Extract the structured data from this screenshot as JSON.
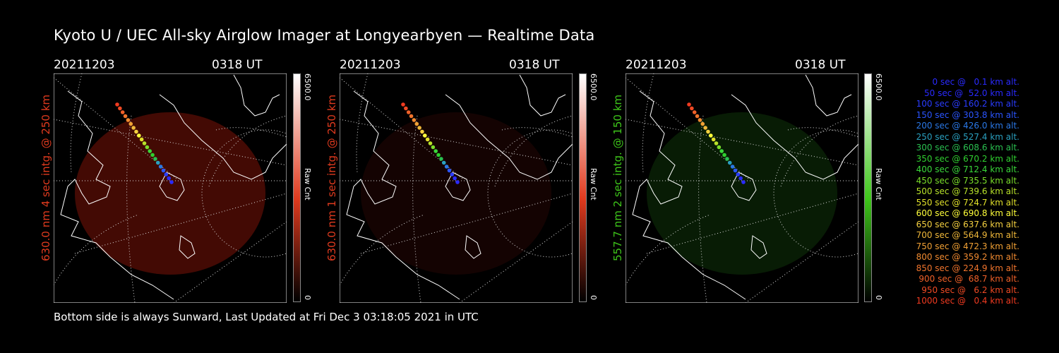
{
  "title": "Kyoto U / UEC All-sky Airglow Imager at Longyearbyen — Realtime Data",
  "footer": "Bottom side is always Sunward, Last Updated at Fri Dec  3 03:18:05 2021 in UTC",
  "panels": [
    {
      "date": "20211203",
      "time": "0318 UT",
      "label": "630.0 nm 4 sec intg. @ 250 km",
      "label_color": "#e03a1e",
      "tint": "#7a1208",
      "intensity": 0.55,
      "cbar_top": "6500.0",
      "cbar_unit": "Raw Cnt",
      "cbar_bottom": "0"
    },
    {
      "date": "20211203",
      "time": "0318 UT",
      "label": "630.0 nm 1 sec intg. @ 250 km",
      "label_color": "#e03a1e",
      "tint": "#3a0a06",
      "intensity": 0.35,
      "cbar_top": "6500.0",
      "cbar_unit": "Raw Cnt",
      "cbar_bottom": "0"
    },
    {
      "date": "20211203",
      "time": "0318 UT",
      "label": "557.7 nm 2 sec intg. @ 150 km",
      "label_color": "#3ec61a",
      "tint": "#123d0c",
      "intensity": 0.45,
      "cbar_top": "6500.0",
      "cbar_unit": "Raw Cnt",
      "cbar_bottom": "0"
    }
  ],
  "legend": [
    {
      "text": "0 sec @   0.1 km alt.",
      "color": "#2a2aff"
    },
    {
      "text": "50 sec @  52.0 km alt.",
      "color": "#2a2aff"
    },
    {
      "text": "100 sec @ 160.2 km alt.",
      "color": "#2a3cff"
    },
    {
      "text": "150 sec @ 303.8 km alt.",
      "color": "#2a55ff"
    },
    {
      "text": "200 sec @ 426.0 km alt.",
      "color": "#2a78e6"
    },
    {
      "text": "250 sec @ 527.4 km alt.",
      "color": "#2aa0c0"
    },
    {
      "text": "300 sec @ 608.6 km alt.",
      "color": "#2ac050"
    },
    {
      "text": "350 sec @ 670.2 km alt.",
      "color": "#30d030"
    },
    {
      "text": "400 sec @ 712.4 km alt.",
      "color": "#3ad83a"
    },
    {
      "text": "450 sec @ 735.5 km alt.",
      "color": "#7ade2a"
    },
    {
      "text": "500 sec @ 739.6 km alt.",
      "color": "#b8e22a"
    },
    {
      "text": "550 sec @ 724.7 km alt.",
      "color": "#e0e02a"
    },
    {
      "text": "600 sec @ 690.8 km alt.",
      "color": "#ffff3a"
    },
    {
      "text": "650 sec @ 637.6 km alt.",
      "color": "#f4d040"
    },
    {
      "text": "700 sec @ 564.9 km alt.",
      "color": "#f0b83a"
    },
    {
      "text": "750 sec @ 472.3 km alt.",
      "color": "#f0a034"
    },
    {
      "text": "800 sec @ 359.2 km alt.",
      "color": "#f08a30"
    },
    {
      "text": "850 sec @ 224.9 km alt.",
      "color": "#f0742c"
    },
    {
      "text": "900 sec @  68.7 km alt.",
      "color": "#f06028"
    },
    {
      "text": "950 sec @   6.2 km alt.",
      "color": "#f04a24"
    },
    {
      "text": "1000 sec @   0.4 km alt.",
      "color": "#f03a20"
    }
  ]
}
